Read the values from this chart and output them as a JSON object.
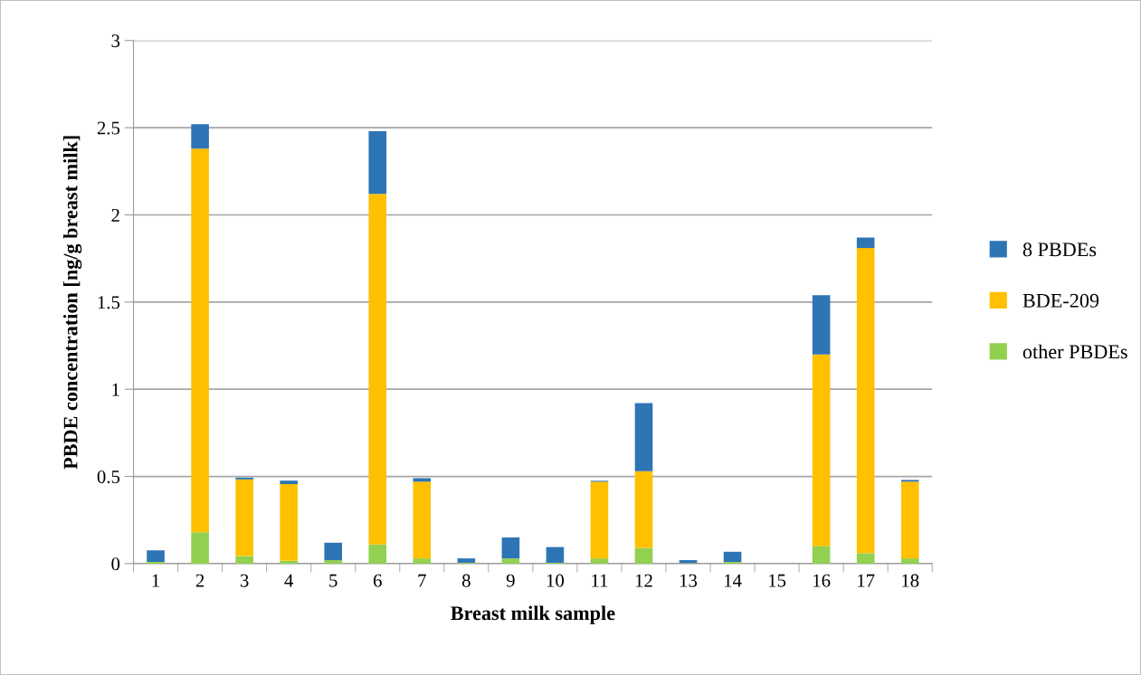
{
  "chart_data": {
    "type": "bar",
    "stacked": true,
    "xlabel": "Breast milk sample",
    "ylabel": "PBDE concentration [ng/g breast milk]",
    "categories": [
      "1",
      "2",
      "3",
      "4",
      "5",
      "6",
      "7",
      "8",
      "9",
      "10",
      "11",
      "12",
      "13",
      "14",
      "15",
      "16",
      "17",
      "18"
    ],
    "series": [
      {
        "name": "other PBDEs",
        "color": "#92d050",
        "values": [
          0.01,
          0.18,
          0.043,
          0.016,
          0.02,
          0.11,
          0.03,
          0.005,
          0.03,
          0.005,
          0.03,
          0.09,
          0.003,
          0.01,
          0,
          0.1,
          0.06,
          0.03
        ]
      },
      {
        "name": "BDE-209",
        "color": "#ffc000",
        "values": [
          0,
          2.2,
          0.44,
          0.44,
          0,
          2.01,
          0.44,
          0,
          0,
          0,
          0.44,
          0.44,
          0,
          0,
          0,
          1.1,
          1.75,
          0.44
        ]
      },
      {
        "name": "8 PBDEs",
        "color": "#2e75b6",
        "values": [
          0.066,
          0.14,
          0.01,
          0.02,
          0.1,
          0.36,
          0.02,
          0.025,
          0.12,
          0.09,
          0.005,
          0.39,
          0.017,
          0.058,
          0,
          0.34,
          0.06,
          0.01
        ]
      }
    ],
    "ylim": [
      0,
      3
    ],
    "yticks": [
      0,
      0.5,
      1,
      1.5,
      2,
      2.5,
      3
    ],
    "grid": "y",
    "legend": "right"
  }
}
